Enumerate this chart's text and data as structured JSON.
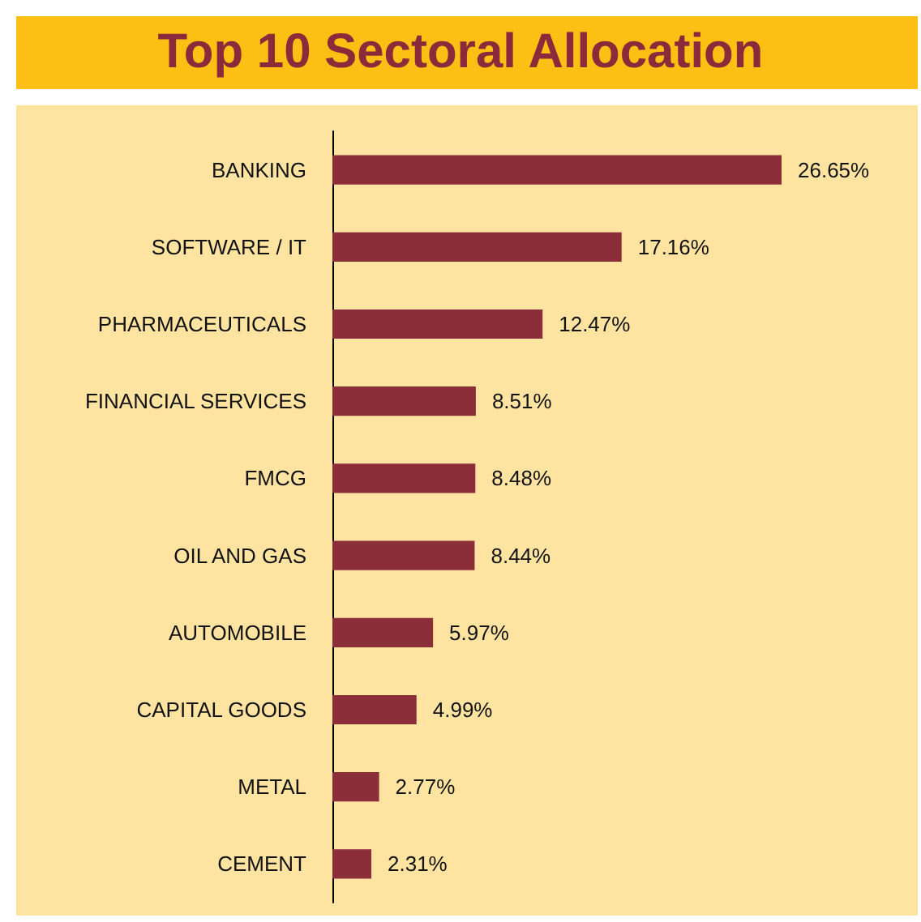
{
  "chart_data": {
    "type": "bar",
    "title": "Top 10 Sectoral Allocation",
    "orientation": "horizontal",
    "categories": [
      "BANKING",
      "SOFTWARE / IT",
      "PHARMACEUTICALS",
      "FINANCIAL SERVICES",
      "FMCG",
      "OIL AND GAS",
      "AUTOMOBILE",
      "CAPITAL GOODS",
      "METAL",
      "CEMENT"
    ],
    "values": [
      26.65,
      17.16,
      12.47,
      8.51,
      8.48,
      8.44,
      5.97,
      4.99,
      2.77,
      2.31
    ],
    "value_labels": [
      "26.65%",
      "17.16%",
      "12.47%",
      "8.51%",
      "8.48%",
      "8.44%",
      "5.97%",
      "4.99%",
      "2.77%",
      "2.31%"
    ],
    "color": "#8b2e3a"
  }
}
